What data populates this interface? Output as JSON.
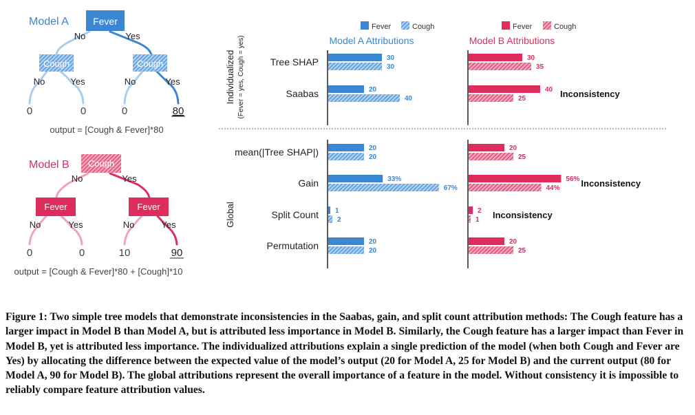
{
  "colors": {
    "blue": "#3a86d2",
    "blue_light": "#a9cdf0",
    "red": "#de2d5c",
    "red_light": "#f0a3b8",
    "grid": "#777777"
  },
  "trees": {
    "model_a": {
      "title": "Model A",
      "root": "Fever",
      "root_no": "No",
      "root_yes": "Yes",
      "left_node": "Cough",
      "right_node": "Cough",
      "left_no": "No",
      "left_yes": "Yes",
      "right_no": "No",
      "right_yes": "Yes",
      "leaves": [
        "0",
        "0",
        "0",
        "80"
      ],
      "output": "output = [Cough & Fever]*80"
    },
    "model_b": {
      "title": "Model B",
      "root": "Cough",
      "root_no": "No",
      "root_yes": "Yes",
      "left_node": "Fever",
      "right_node": "Fever",
      "left_no": "No",
      "left_yes": "Yes",
      "right_no": "No",
      "right_yes": "Yes",
      "leaves": [
        "0",
        "0",
        "10",
        "90"
      ],
      "output": "output = [Cough & Fever]*80 + [Cough]*10"
    }
  },
  "chart": {
    "section_labels": {
      "individualized": "Individualized",
      "individualized_sub": "(Fever = yes, Cough = yes)",
      "global": "Global"
    },
    "legend": {
      "fever": "Fever",
      "cough": "Cough"
    },
    "inconsistency_label": "Inconsistency"
  },
  "chart_data": {
    "type": "bar",
    "panels": [
      {
        "title": "Model A Attributions",
        "color": "blue"
      },
      {
        "title": "Model B Attributions",
        "color": "red"
      }
    ],
    "rows": [
      {
        "label": "Tree SHAP",
        "group": "Individualized",
        "a_fever": 30,
        "a_cough": 30,
        "a_fever_label": "30",
        "a_cough_label": "30",
        "b_fever": 30,
        "b_cough": 35,
        "b_fever_label": "30",
        "b_cough_label": "35",
        "inconsistent": false
      },
      {
        "label": "Saabas",
        "group": "Individualized",
        "a_fever": 20,
        "a_cough": 40,
        "a_fever_label": "20",
        "a_cough_label": "40",
        "b_fever": 40,
        "b_cough": 25,
        "b_fever_label": "40",
        "b_cough_label": "25",
        "inconsistent": true
      },
      {
        "label": "mean(|Tree SHAP|)",
        "group": "Global",
        "a_fever": 20,
        "a_cough": 20,
        "a_fever_label": "20",
        "a_cough_label": "20",
        "b_fever": 20,
        "b_cough": 25,
        "b_fever_label": "20",
        "b_cough_label": "25",
        "inconsistent": false
      },
      {
        "label": "Gain",
        "group": "Global",
        "a_fever": 33,
        "a_cough": 67,
        "a_fever_label": "33%",
        "a_cough_label": "67%",
        "b_fever": 56,
        "b_cough": 44,
        "b_fever_label": "56%",
        "b_cough_label": "44%",
        "inconsistent": true
      },
      {
        "label": "Split Count",
        "group": "Global",
        "a_fever": 1,
        "a_cough": 2,
        "a_fever_label": "1",
        "a_cough_label": "2",
        "b_fever": 2,
        "b_cough": 1,
        "b_fever_label": "2",
        "b_cough_label": "1",
        "inconsistent": true
      },
      {
        "label": "Permutation",
        "group": "Global",
        "a_fever": 20,
        "a_cough": 20,
        "a_fever_label": "20",
        "a_cough_label": "20",
        "b_fever": 20,
        "b_cough": 25,
        "b_fever_label": "20",
        "b_cough_label": "25",
        "inconsistent": false
      }
    ]
  },
  "caption": "Figure 1: Two simple tree models that demonstrate inconsistencies in the Saabas, gain, and split count attribution methods: The Cough feature has a larger impact in Model B than Model A, but is attributed less importance in Model B. Similarly, the Cough feature has a larger impact than Fever in Model B, yet is attributed less importance. The individualized attributions explain a single prediction of the model (when both Cough and Fever are Yes) by allocating the difference between the expected value of the model’s output (20 for Model A, 25 for Model B) and the current output (80 for Model A, 90 for Model B). The global attributions represent the overall importance of a feature in the model. Without consistency it is impossible to reliably compare feature attribution values."
}
